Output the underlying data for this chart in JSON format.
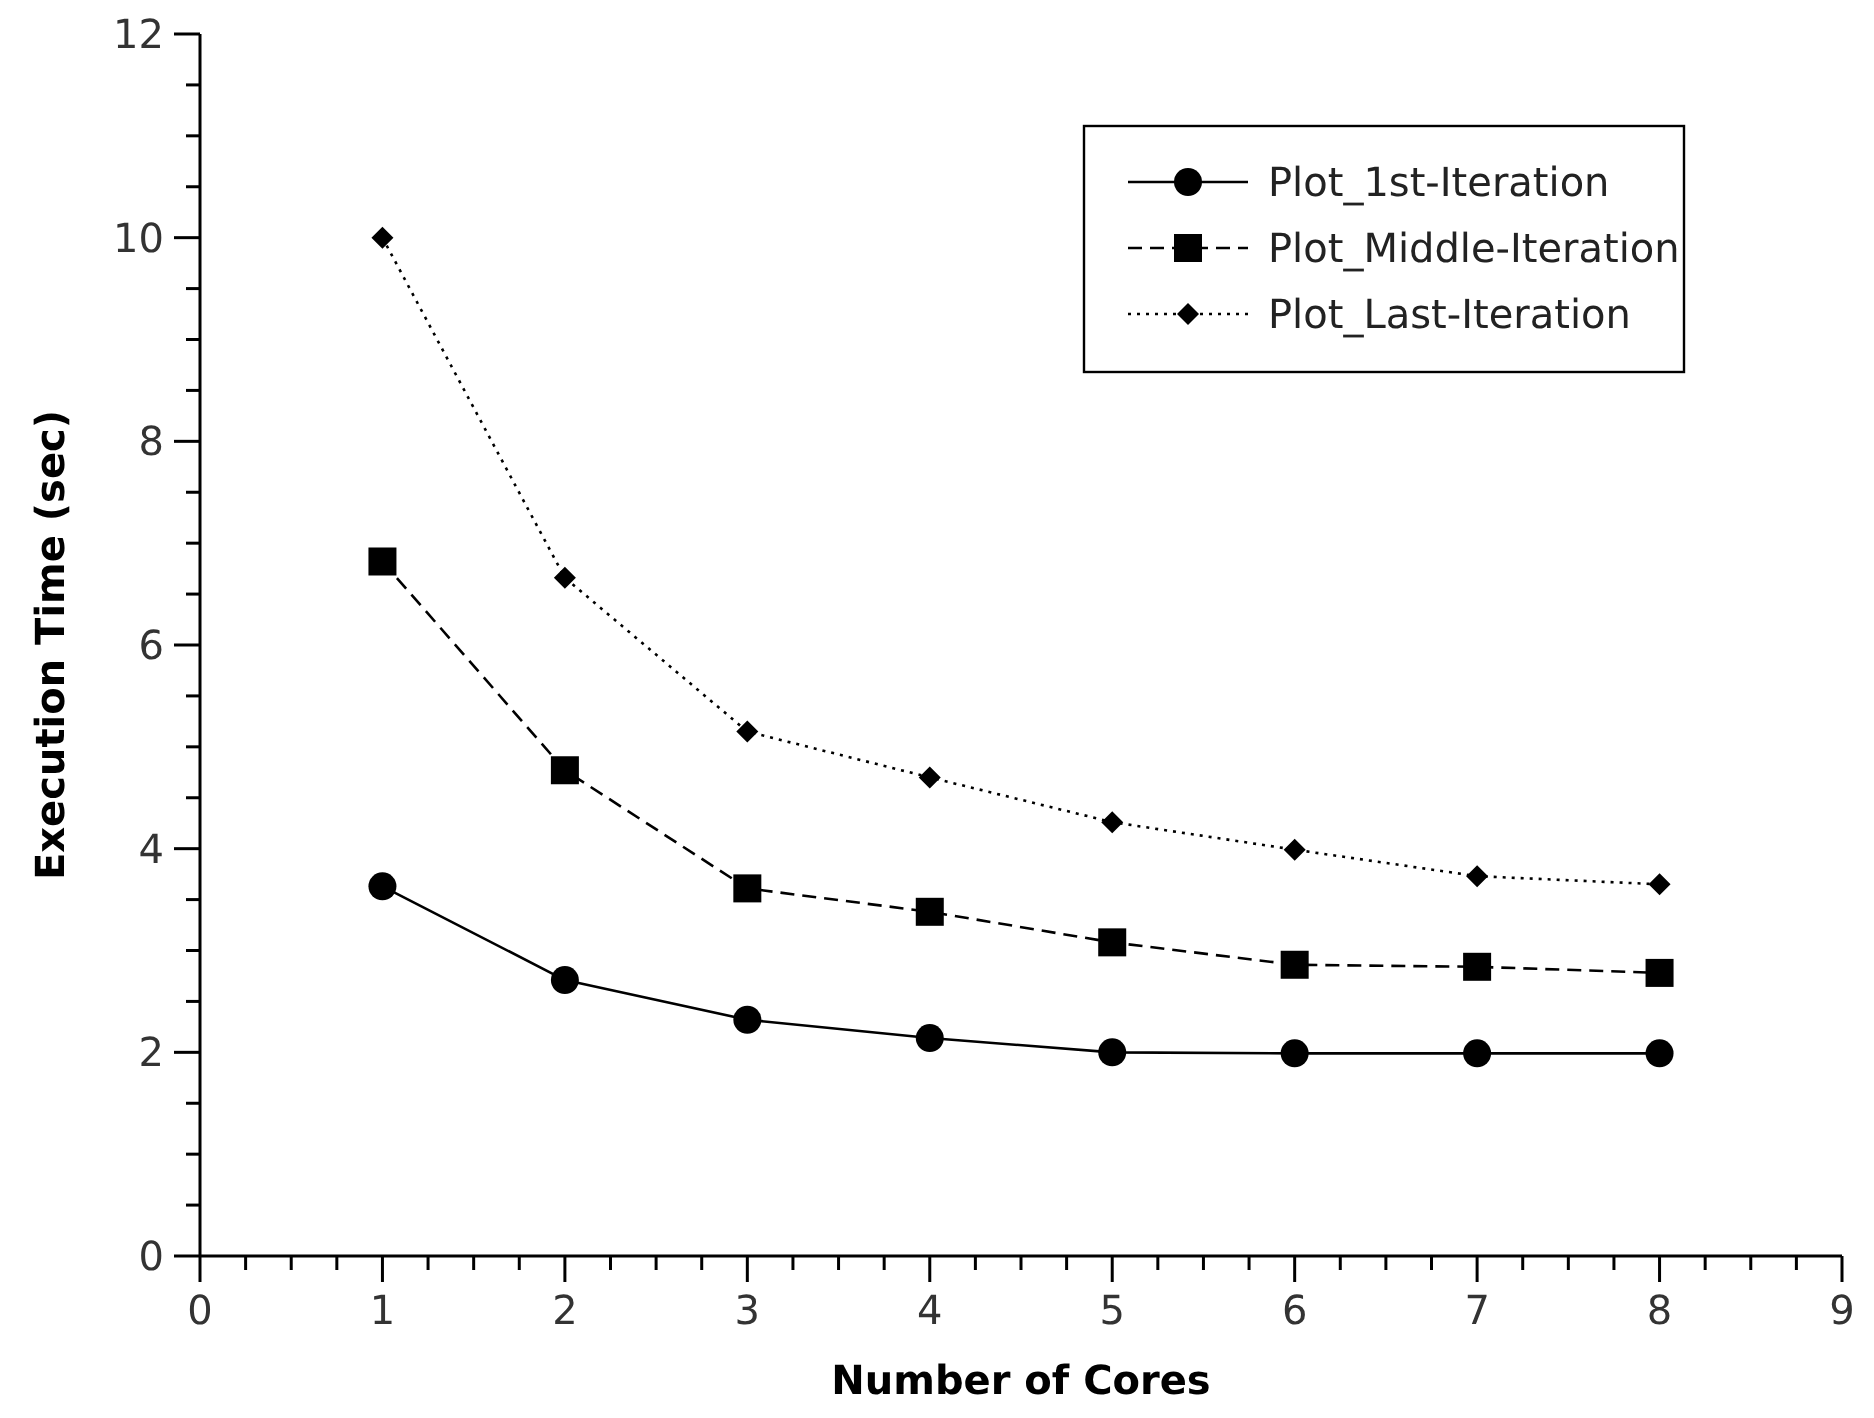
{
  "chart_data": {
    "type": "line",
    "xlabel": "Number of Cores",
    "ylabel": "Execution Time (sec)",
    "x": [
      1,
      2,
      3,
      4,
      5,
      6,
      7,
      8
    ],
    "xlim": [
      0,
      9
    ],
    "ylim": [
      0,
      12
    ],
    "xticks": [
      0,
      {
        "value": 0.25,
        "label": null
      },
      {
        "value": 0.5,
        "label": null
      },
      {
        "value": 0.75,
        "label": null
      },
      1,
      {
        "value": 1.25,
        "label": null
      },
      {
        "value": 1.5,
        "label": null
      },
      {
        "value": 1.75,
        "label": null
      },
      2,
      {
        "value": 2.25,
        "label": null
      },
      {
        "value": 2.5,
        "label": null
      },
      {
        "value": 2.75,
        "label": null
      },
      3,
      {
        "value": 3.25,
        "label": null
      },
      {
        "value": 3.5,
        "label": null
      },
      {
        "value": 3.75,
        "label": null
      },
      4,
      {
        "value": 4.25,
        "label": null
      },
      {
        "value": 4.5,
        "label": null
      },
      {
        "value": 4.75,
        "label": null
      },
      5,
      {
        "value": 5.25,
        "label": null
      },
      {
        "value": 5.5,
        "label": null
      },
      {
        "value": 5.75,
        "label": null
      },
      6,
      {
        "value": 6.25,
        "label": null
      },
      {
        "value": 6.5,
        "label": null
      },
      {
        "value": 6.75,
        "label": null
      },
      7,
      {
        "value": 7.25,
        "label": null
      },
      {
        "value": 7.5,
        "label": null
      },
      {
        "value": 7.75,
        "label": null
      },
      8,
      {
        "value": 8.25,
        "label": null
      },
      {
        "value": 8.5,
        "label": null
      },
      {
        "value": 8.75,
        "label": null
      },
      9
    ],
    "yticks": [
      0,
      {
        "value": 0.5,
        "label": null
      },
      {
        "value": 1,
        "label": null
      },
      {
        "value": 1.5,
        "label": null
      },
      2,
      {
        "value": 2.5,
        "label": null
      },
      {
        "value": 3,
        "label": null
      },
      {
        "value": 3.5,
        "label": null
      },
      4,
      {
        "value": 4.5,
        "label": null
      },
      {
        "value": 5,
        "label": null
      },
      {
        "value": 5.5,
        "label": null
      },
      6,
      {
        "value": 6.5,
        "label": null
      },
      {
        "value": 7,
        "label": null
      },
      {
        "value": 7.5,
        "label": null
      },
      8,
      {
        "value": 8.5,
        "label": null
      },
      {
        "value": 9,
        "label": null
      },
      {
        "value": 9.5,
        "label": null
      },
      10,
      {
        "value": 10.5,
        "label": null
      },
      {
        "value": 11,
        "label": null
      },
      {
        "value": 11.5,
        "label": null
      },
      12
    ],
    "grid": false,
    "legend": "top right",
    "series": [
      {
        "name": "Plot_1st-Iteration",
        "color": "#000000",
        "marker": "circle",
        "line_style": "solid",
        "values": [
          3.63,
          2.71,
          2.32,
          2.14,
          2.0,
          1.99,
          1.99,
          1.99
        ]
      },
      {
        "name": "Plot_Middle-Iteration",
        "color": "#000000",
        "marker": "square",
        "line_style": "dashed",
        "values": [
          6.82,
          4.77,
          3.61,
          3.38,
          3.08,
          2.86,
          2.84,
          2.78
        ]
      },
      {
        "name": "Plot_Last-Iteration",
        "color": "#000000",
        "marker": "diamond",
        "line_style": "dotted",
        "values": [
          10.0,
          6.66,
          5.15,
          4.7,
          4.26,
          3.99,
          3.73,
          3.65
        ]
      }
    ]
  }
}
